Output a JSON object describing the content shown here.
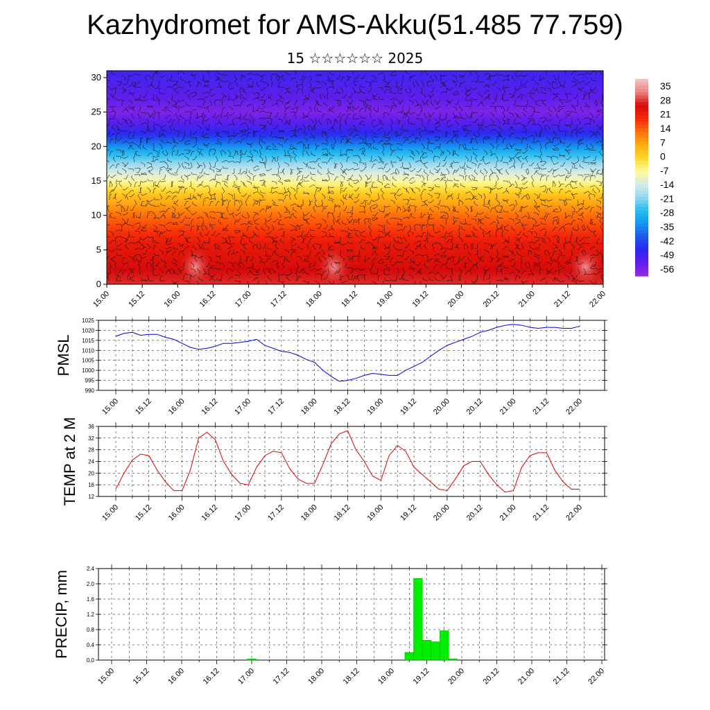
{
  "title": "Kazhydromet for AMS-Akku(51.485 77.759)",
  "subtitle": "15 ☆☆☆☆☆☆ 2025",
  "colors": {
    "pmsl_line": "#0000dd",
    "temp_line": "#dd0000",
    "precip_bar": "#00ee00",
    "precip_edge": "#00aa00"
  },
  "chart_data": [
    {
      "type": "heatmap",
      "name": "cross-section",
      "xlabel": "",
      "ylabel": "",
      "x_ticks": [
        "15.00",
        "15.12",
        "16.00",
        "16.12",
        "17.00",
        "17.12",
        "18.00",
        "18.12",
        "19.00",
        "19.12",
        "20.00",
        "20.12",
        "21.00",
        "21.12",
        "22.00"
      ],
      "ylim": [
        0,
        31
      ],
      "y_ticks": [
        0,
        5,
        10,
        15,
        20,
        25,
        30
      ],
      "colorbar": {
        "labels": [
          "35",
          "28",
          "21",
          "14",
          "7",
          "0",
          "-7",
          "-14",
          "-21",
          "-28",
          "-35",
          "-42",
          "-49",
          "-56"
        ],
        "range": [
          -63,
          42
        ]
      },
      "vertical_profile": [
        {
          "level": 0,
          "value": 30
        },
        {
          "level": 6,
          "value": 24
        },
        {
          "level": 10,
          "value": 14
        },
        {
          "level": 13,
          "value": 3
        },
        {
          "level": 15,
          "value": -8
        },
        {
          "level": 17,
          "value": -18
        },
        {
          "level": 19.5,
          "value": -32
        },
        {
          "level": 22,
          "value": -50
        },
        {
          "level": 25,
          "value": -60
        },
        {
          "level": 27,
          "value": -56
        },
        {
          "level": 31,
          "value": -52
        }
      ],
      "warm_spots_x": [
        1.25,
        3.2,
        6.75
      ]
    },
    {
      "type": "line",
      "name": "pmsl",
      "ylabel": "PMSL",
      "ylim": [
        990,
        1025
      ],
      "y_ticks": [
        990,
        995,
        1000,
        1005,
        1010,
        1015,
        1020,
        1025
      ],
      "x_ticks": [
        "15.00",
        "15.12",
        "16.00",
        "16.12",
        "17.00",
        "17.12",
        "18.00",
        "18.12",
        "19.00",
        "19.12",
        "20.00",
        "20.12",
        "21.00",
        "21.12",
        "22.00"
      ],
      "series": [
        {
          "x": [
            0,
            0.125,
            0.25,
            0.375,
            0.5,
            0.625,
            0.75,
            0.875,
            1,
            1.125,
            1.25,
            1.375,
            1.5,
            1.625,
            1.75,
            1.875,
            2,
            2.125,
            2.25,
            2.375,
            2.5,
            2.625,
            2.75,
            2.875,
            3,
            3.125,
            3.25,
            3.375,
            3.5,
            3.625,
            3.75,
            3.875,
            4,
            4.125,
            4.25,
            4.375,
            4.5,
            4.625,
            4.75,
            4.875,
            5,
            5.125,
            5.25,
            5.375,
            5.5,
            5.625,
            5.75,
            5.875,
            6,
            6.125,
            6.25,
            6.375,
            6.5,
            6.625,
            6.75,
            6.875,
            7
          ],
          "values": [
            1017,
            1018.5,
            1019,
            1017.5,
            1018,
            1018,
            1016.5,
            1015.5,
            1013.5,
            1011.5,
            1010.5,
            1011,
            1012,
            1013.5,
            1013.5,
            1014,
            1014.5,
            1015.5,
            1012.5,
            1011,
            1009.5,
            1009,
            1007.5,
            1005.5,
            1004,
            1000,
            997,
            994.5,
            995,
            996,
            997.5,
            998.5,
            998,
            997.5,
            997.5,
            1000,
            1002,
            1004,
            1007,
            1010,
            1012.5,
            1014,
            1015.5,
            1017,
            1019,
            1020,
            1021.5,
            1022.5,
            1023,
            1022.5,
            1021.5,
            1021,
            1021.5,
            1021.5,
            1021,
            1021,
            1022
          ]
        }
      ]
    },
    {
      "type": "line",
      "name": "temp",
      "ylabel": "TEMP at 2 M",
      "ylim": [
        12,
        36
      ],
      "y_ticks": [
        12,
        16,
        20,
        24,
        28,
        32,
        36
      ],
      "x_ticks": [
        "15.00",
        "15.12",
        "16.00",
        "16.12",
        "17.00",
        "17.12",
        "18.00",
        "18.12",
        "19.00",
        "19.12",
        "20.00",
        "20.12",
        "21.00",
        "21.12",
        "22.00"
      ],
      "series": [
        {
          "x": [
            0,
            0.125,
            0.25,
            0.375,
            0.5,
            0.625,
            0.75,
            0.875,
            1,
            1.125,
            1.25,
            1.375,
            1.5,
            1.625,
            1.75,
            1.875,
            2,
            2.125,
            2.25,
            2.375,
            2.5,
            2.625,
            2.75,
            2.875,
            3,
            3.125,
            3.25,
            3.375,
            3.5,
            3.625,
            3.75,
            3.875,
            4,
            4.125,
            4.25,
            4.375,
            4.5,
            4.625,
            4.75,
            4.875,
            5,
            5.125,
            5.25,
            5.375,
            5.5,
            5.625,
            5.75,
            5.875,
            6,
            6.125,
            6.25,
            6.375,
            6.5,
            6.625,
            6.75,
            6.875,
            7
          ],
          "values": [
            14.5,
            20,
            24.5,
            26.5,
            26,
            21,
            17,
            14,
            14,
            21,
            32,
            34,
            31.5,
            24,
            19.5,
            16.5,
            16,
            22,
            26,
            27.5,
            27,
            21.5,
            18,
            16.5,
            16.5,
            23,
            30,
            33.5,
            34.5,
            28,
            24,
            19,
            17.5,
            26,
            29.5,
            27.5,
            22,
            19.5,
            17,
            14.5,
            14,
            18,
            22.5,
            24,
            24,
            19.5,
            16,
            13.5,
            14,
            22,
            26,
            27,
            27,
            21,
            17,
            14.5,
            14.5
          ]
        }
      ]
    },
    {
      "type": "bar",
      "name": "precip",
      "ylabel": "PRECIP, mm",
      "ylim": [
        0,
        2.4
      ],
      "y_ticks": [
        "0.0",
        "0.4",
        "0.8",
        "1.2",
        "1.6",
        "2.0",
        "2.4"
      ],
      "x_ticks": [
        "15.00",
        "15.12",
        "16.00",
        "16.12",
        "17.00",
        "17.12",
        "18.00",
        "18.12",
        "19.00",
        "19.12",
        "20.00",
        "20.12",
        "21.00",
        "21.12",
        "22.00"
      ],
      "bars": [
        {
          "x": 2.0,
          "value": 0.03
        },
        {
          "x": 4.25,
          "value": 0.2
        },
        {
          "x": 4.375,
          "value": 2.14
        },
        {
          "x": 4.5,
          "value": 0.52
        },
        {
          "x": 4.625,
          "value": 0.48
        },
        {
          "x": 4.75,
          "value": 0.77
        },
        {
          "x": 4.875,
          "value": 0.03
        }
      ]
    }
  ]
}
